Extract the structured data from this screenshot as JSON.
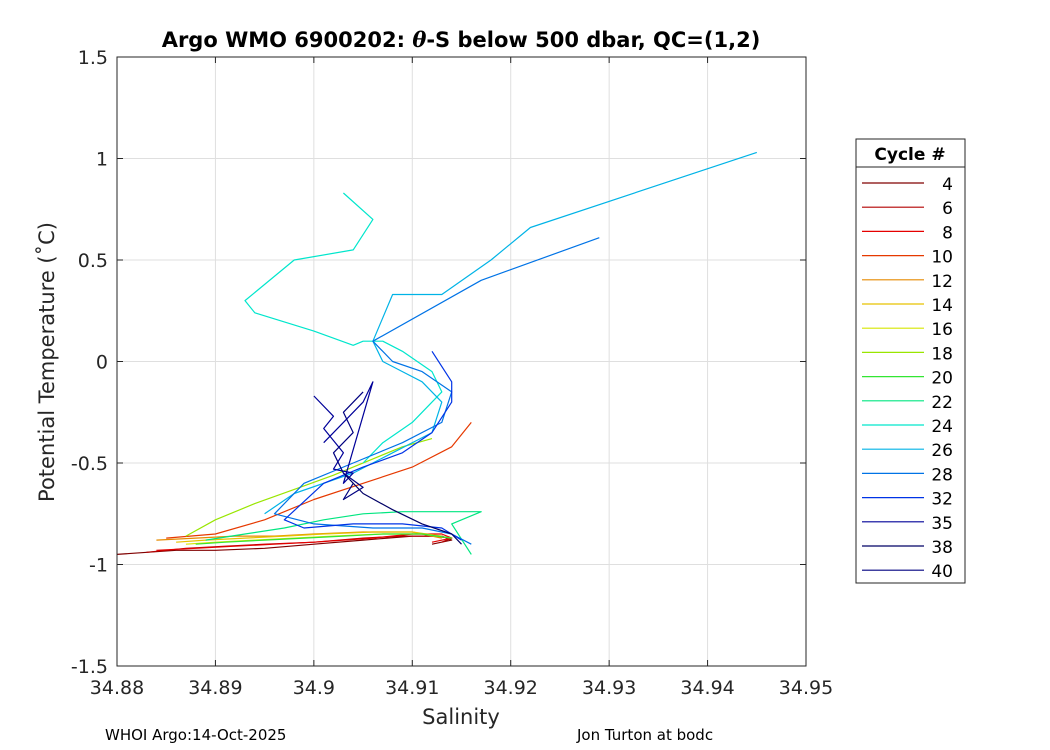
{
  "chart_data": {
    "type": "line",
    "title_prefix": "Argo WMO 6900202: ",
    "title_theta": "θ",
    "title_suffix": "-S below 500 dbar,  QC=(1,2)",
    "xlabel": "Salinity",
    "ylabel": "Potential Temperature (˚C)",
    "xlim": [
      34.88,
      34.95
    ],
    "ylim": [
      -1.5,
      1.5
    ],
    "xticks": [
      34.88,
      34.89,
      34.9,
      34.91,
      34.92,
      34.93,
      34.94,
      34.95
    ],
    "xtick_labels": [
      "34.88",
      "34.89",
      "34.9",
      "34.91",
      "34.92",
      "34.93",
      "34.94",
      "34.95"
    ],
    "yticks": [
      -1.5,
      -1,
      -0.5,
      0,
      0.5,
      1,
      1.5
    ],
    "ytick_labels": [
      "-1.5",
      "-1",
      "-0.5",
      "0",
      "0.5",
      "1",
      "1.5"
    ],
    "grid": true,
    "legend_title": "Cycle #",
    "legend_position": "outside-right",
    "series": [
      {
        "name": "4",
        "color": "#800000",
        "x": [
          34.88,
          34.886,
          34.89,
          34.895,
          34.9,
          34.905,
          34.91,
          34.913,
          34.914,
          34.912
        ],
        "y": [
          -0.95,
          -0.93,
          -0.93,
          -0.92,
          -0.9,
          -0.88,
          -0.86,
          -0.86,
          -0.88,
          -0.9
        ]
      },
      {
        "name": "6",
        "color": "#b30000",
        "x": [
          34.883,
          34.887,
          34.891,
          34.895,
          34.9,
          34.905,
          34.909,
          34.912,
          34.914,
          34.913
        ],
        "y": [
          -0.94,
          -0.92,
          -0.91,
          -0.9,
          -0.89,
          -0.87,
          -0.86,
          -0.86,
          -0.87,
          -0.89
        ]
      },
      {
        "name": "8",
        "color": "#e60000",
        "x": [
          34.884,
          34.888,
          34.892,
          34.896,
          34.9,
          34.906,
          34.91,
          34.913,
          34.914,
          34.912
        ],
        "y": [
          -0.93,
          -0.92,
          -0.91,
          -0.9,
          -0.89,
          -0.87,
          -0.85,
          -0.85,
          -0.87,
          -0.89
        ]
      },
      {
        "name": "10",
        "color": "#e63900",
        "x": [
          34.885,
          34.89,
          34.895,
          34.9,
          34.905,
          34.91,
          34.914,
          34.916
        ],
        "y": [
          -0.87,
          -0.85,
          -0.78,
          -0.68,
          -0.6,
          -0.52,
          -0.42,
          -0.3
        ]
      },
      {
        "name": "12",
        "color": "#e68a00",
        "x": [
          34.884,
          34.888,
          34.892,
          34.896,
          34.9,
          34.905,
          34.91,
          34.913
        ],
        "y": [
          -0.88,
          -0.87,
          -0.86,
          -0.86,
          -0.85,
          -0.84,
          -0.84,
          -0.87
        ]
      },
      {
        "name": "14",
        "color": "#e6c200",
        "x": [
          34.886,
          34.889,
          34.893,
          34.897,
          34.901,
          34.906,
          34.91,
          34.913
        ],
        "y": [
          -0.89,
          -0.88,
          -0.87,
          -0.86,
          -0.85,
          -0.84,
          -0.84,
          -0.86
        ]
      },
      {
        "name": "16",
        "color": "#d6e600",
        "x": [
          34.887,
          34.89,
          34.894,
          34.898,
          34.902,
          34.907,
          34.911,
          34.914
        ],
        "y": [
          -0.9,
          -0.89,
          -0.88,
          -0.87,
          -0.86,
          -0.85,
          -0.85,
          -0.87
        ]
      },
      {
        "name": "18",
        "color": "#99e600",
        "x": [
          34.887,
          34.89,
          34.894,
          34.898,
          34.902,
          34.906,
          34.909,
          34.912
        ],
        "y": [
          -0.86,
          -0.78,
          -0.7,
          -0.63,
          -0.56,
          -0.48,
          -0.42,
          -0.38
        ]
      },
      {
        "name": "20",
        "color": "#33e633",
        "x": [
          34.888,
          34.891,
          34.895,
          34.899,
          34.903,
          34.907,
          34.911,
          34.914
        ],
        "y": [
          -0.9,
          -0.89,
          -0.88,
          -0.87,
          -0.86,
          -0.85,
          -0.85,
          -0.87
        ]
      },
      {
        "name": "22",
        "color": "#00e680",
        "x": [
          34.889,
          34.893,
          34.897,
          34.901,
          34.905,
          34.909,
          34.913,
          34.917,
          34.914,
          34.916
        ],
        "y": [
          -0.88,
          -0.85,
          -0.82,
          -0.78,
          -0.75,
          -0.74,
          -0.74,
          -0.74,
          -0.8,
          -0.95
        ]
      },
      {
        "name": "24",
        "color": "#00e6cc",
        "x": [
          34.903,
          34.906,
          34.904,
          34.898,
          34.893,
          34.894,
          34.9,
          34.904,
          34.905,
          34.907,
          34.909,
          34.912,
          34.913,
          34.91,
          34.907,
          34.905
        ],
        "y": [
          0.83,
          0.7,
          0.55,
          0.5,
          0.3,
          0.24,
          0.15,
          0.08,
          0.1,
          0.1,
          0.05,
          -0.05,
          -0.15,
          -0.3,
          -0.4,
          -0.5
        ]
      },
      {
        "name": "26",
        "color": "#00b3e6",
        "x": [
          34.945,
          34.922,
          34.918,
          34.913,
          34.908,
          34.906,
          34.907,
          34.909,
          34.911,
          34.913,
          34.912,
          34.908,
          34.904,
          34.898,
          34.895
        ],
        "y": [
          1.03,
          0.66,
          0.5,
          0.33,
          0.33,
          0.1,
          0.0,
          -0.05,
          -0.1,
          -0.2,
          -0.35,
          -0.45,
          -0.55,
          -0.65,
          -0.75
        ]
      },
      {
        "name": "28",
        "color": "#0073e6",
        "x": [
          34.929,
          34.917,
          34.906,
          34.908,
          34.911,
          34.914,
          34.913,
          34.909,
          34.904,
          34.899,
          34.896,
          34.9,
          34.906,
          34.911,
          34.914,
          34.916
        ],
        "y": [
          0.61,
          0.4,
          0.1,
          0.0,
          -0.05,
          -0.15,
          -0.3,
          -0.4,
          -0.5,
          -0.6,
          -0.75,
          -0.8,
          -0.82,
          -0.82,
          -0.85,
          -0.9
        ]
      },
      {
        "name": "32",
        "color": "#0033e6",
        "x": [
          34.912,
          34.914,
          34.914,
          34.912,
          34.909,
          34.905,
          34.901,
          34.897,
          34.899,
          34.904,
          34.909,
          34.913,
          34.915
        ],
        "y": [
          0.05,
          -0.1,
          -0.2,
          -0.35,
          -0.45,
          -0.52,
          -0.6,
          -0.78,
          -0.82,
          -0.8,
          -0.8,
          -0.82,
          -0.88
        ]
      },
      {
        "name": "35",
        "color": "#000099",
        "x": [
          34.9,
          34.902,
          34.901,
          34.903,
          34.902,
          34.904,
          34.903,
          34.906,
          34.905,
          34.903,
          34.901
        ],
        "y": [
          -0.17,
          -0.27,
          -0.33,
          -0.45,
          -0.53,
          -0.55,
          -0.6,
          -0.1,
          -0.2,
          -0.3,
          -0.4
        ]
      },
      {
        "name": "38",
        "color": "#000066",
        "x": [
          34.903,
          34.905,
          34.908,
          34.911,
          34.914,
          34.915
        ],
        "y": [
          -0.55,
          -0.65,
          -0.73,
          -0.8,
          -0.85,
          -0.9
        ]
      },
      {
        "name": "40",
        "color": "#000080",
        "x": [
          34.905,
          34.903,
          34.904,
          34.902,
          34.903,
          34.905,
          34.903,
          34.904
        ],
        "y": [
          -0.15,
          -0.25,
          -0.35,
          -0.45,
          -0.55,
          -0.62,
          -0.68,
          -0.6
        ]
      }
    ]
  },
  "footer": {
    "left": "WHOI Argo:14-Oct-2025",
    "right": "Jon Turton at bodc"
  }
}
